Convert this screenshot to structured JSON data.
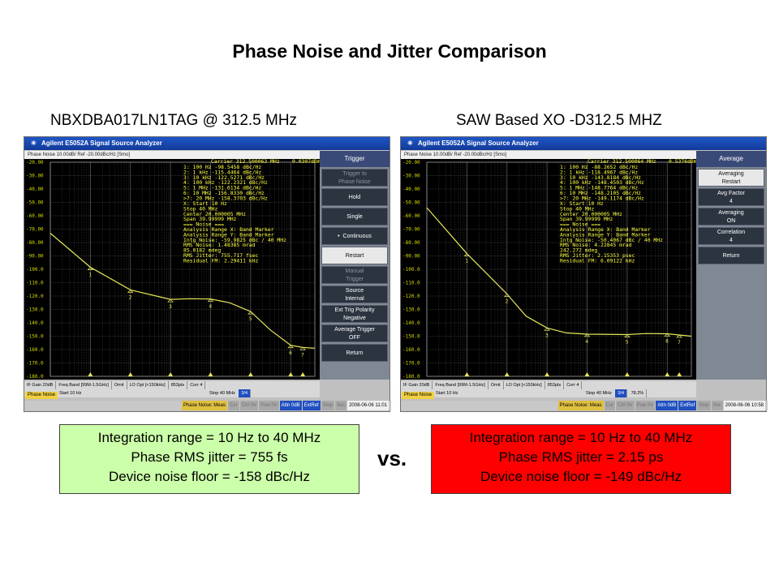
{
  "slide": {
    "title": "Phase Noise and Jitter Comparison",
    "vs": "vs."
  },
  "left": {
    "label": "NBXDBA017LN1TAG @ 312.5 MHz",
    "window_title": "Agilent E5052A Signal Source Analyzer",
    "trace_header": "Phase Noise 10.00dB/ Ref -20.00dBc/Hz [Smo]",
    "carrier": "Carrier 312.500063 MHz",
    "carrier_level": "0.0307dBm",
    "markers": [
      "1:  100 Hz    -98.5458  dBc/Hz",
      "2:  1 kHz    -115.4464  dBc/Hz",
      "3:  10 kHz   -122.5271  dBc/Hz",
      "4:  100 kHz  -122.2321  dBc/Hz",
      "5:  1 MHz    -131.6134  dBc/Hz",
      "6:  10 MHz   -156.8330  dBc/Hz",
      ">7:  20 MHz   -158.3703  dBc/Hz"
    ],
    "analysis": [
      "X: Start 10 Hz",
      "Stop 40 MHz",
      "Center 20.000005 MHz",
      "Span 39.99999 MHz",
      "=== Noise ===",
      "Analysis Range X: Band Marker",
      "Analysis Range Y: Band Marker",
      "Intg Noise: -59.9825 dBc / 40 MHz",
      "RMS Noise: 1.48385 mrad",
      "85.0182 mdeg",
      "RMS Jitter: 755.717 fsec",
      "Residual FM: 2.29411 kHz"
    ],
    "y_ticks": [
      "-20.00",
      "-30.00",
      "-40.00",
      "-50.00",
      "-60.00",
      "-70.00",
      "-80.00",
      "-90.00",
      "-100.0",
      "-110.0",
      "-120.0",
      "-130.0",
      "-140.0",
      "-150.0",
      "-160.0",
      "-170.0",
      "-180.0"
    ],
    "marker_labels": [
      "1",
      "2",
      "3",
      "4",
      "5",
      "6",
      "7"
    ],
    "softkey_title": "Trigger",
    "softkeys": [
      {
        "label": "Trigger to",
        "value": "Phase Noise",
        "style": "dim"
      },
      {
        "label": "Hold",
        "style": "normal"
      },
      {
        "label": "Single",
        "style": "normal"
      },
      {
        "label": "Continuous",
        "style": "dot"
      },
      {
        "label": "Restart",
        "style": "light"
      },
      {
        "label": "Manual",
        "value": "Trigger",
        "style": "dim"
      },
      {
        "label": "Source",
        "value": "Internal",
        "style": "two"
      },
      {
        "label": "Ext Trig Polarity",
        "value": "Negative",
        "style": "two"
      },
      {
        "label": "Average Trigger",
        "value": "OFF",
        "style": "two"
      },
      {
        "label": "Return",
        "style": "normal"
      }
    ],
    "status1": [
      "IF Gain 20dB",
      "Freq Band [99M-1.5GHz]",
      "Omit",
      "LO Opt [<150kHz]",
      "853pts",
      "Corr 4"
    ],
    "status2_start": "Start 10 Hz",
    "status2_stop": "Stop 40 MHz",
    "status2_count": "3/4",
    "phase_noise_tab": "Phase Noise",
    "bottom": [
      "Phase Noise: Meas",
      "Cor",
      "Ctrl 0V",
      "Pow 0V",
      "Attn 0dB",
      "ExtRef",
      "Stop",
      "Svc",
      "2008-06-06 11:01"
    ],
    "info": [
      "Integration range = 10 Hz to 40 MHz",
      "Phase RMS jitter = 755 fs",
      "Device noise floor = -158 dBc/Hz"
    ],
    "trace_points": [
      [
        10,
        -73
      ],
      [
        100,
        -98.5
      ],
      [
        1000,
        -115.4
      ],
      [
        10000,
        -122.5
      ],
      [
        30000,
        -122.0
      ],
      [
        100000,
        -122.2
      ],
      [
        300000,
        -125
      ],
      [
        1000000,
        -131.6
      ],
      [
        3000000,
        -145
      ],
      [
        10000000,
        -156.8
      ],
      [
        20000000,
        -158.4
      ],
      [
        40000000,
        -159
      ]
    ]
  },
  "right": {
    "label": "SAW Based XO -D312.5 MHZ",
    "window_title": "Agilent E5052A Signal Source Analyzer",
    "trace_header": "Phase Noise 10.00dB/ Ref -20.00dBc/Hz [Smo]",
    "carrier": "Carrier 312.500064 MHz",
    "carrier_level": "0.5376dBm",
    "markers": [
      "1:  100 Hz    -88.2652  dBc/Hz",
      "2:  1 kHz    -118.4967  dBc/Hz",
      "3:  10 kHz   -143.8184  dBc/Hz",
      "4:  100 kHz  -148.4503  dBc/Hz",
      "5:  1 MHz    -148.7764  dBc/Hz",
      "6:  10 MHz   -148.2105  dBc/Hz",
      ">7:  20 MHz   -149.1174  dBc/Hz"
    ],
    "analysis": [
      "X: Start 10 Hz",
      "Stop 40 MHz",
      "Center 20.000005 MHz",
      "Span 39.99999 MHz",
      "=== Noise ===",
      "Analysis Range X: Band Marker",
      "Analysis Range Y: Band Marker",
      "Intg Noise: -50.4067 dBc / 40 MHz",
      "RMS Noise: 4.22845 mrad",
      "242.272 mdeg",
      "RMS Jitter: 2.15353 psec",
      "Residual FM: 6.09122 kHz"
    ],
    "y_ticks": [
      "-20.00",
      "-30.00",
      "-40.00",
      "-50.00",
      "-60.00",
      "-70.00",
      "-80.00",
      "-90.00",
      "-100.0",
      "-110.0",
      "-120.0",
      "-130.0",
      "-140.0",
      "-150.0",
      "-160.0",
      "-170.0",
      "-180.0"
    ],
    "marker_labels": [
      "1",
      "2",
      "3",
      "4",
      "5",
      "6",
      "7"
    ],
    "softkey_title": "Average",
    "softkeys": [
      {
        "label": "Averaging",
        "value": "Restart",
        "style": "light2"
      },
      {
        "label": "Avg Factor",
        "value": "4",
        "style": "two"
      },
      {
        "label": "Averaging",
        "value": "ON",
        "style": "two"
      },
      {
        "label": "Correlation",
        "value": "4",
        "style": "two"
      },
      {
        "label": "Return",
        "style": "normal"
      }
    ],
    "status1": [
      "IF Gain 20dB",
      "Freq Band [99M-1.5GHz]",
      "Omit",
      "LO Opt [<150kHz]",
      "853pts",
      "Corr 4"
    ],
    "status2_start": "Start 10 Hz",
    "status2_stop": "Stop 40 MHz",
    "status2_count": "3/4",
    "status2_pct": "78.2%",
    "phase_noise_tab": "Phase Noise",
    "bottom": [
      "Phase Noise: Meas",
      "Cor",
      "Ctrl 0V",
      "Pow 0V",
      "Attn 0dB",
      "ExtRef",
      "Stop",
      "Svc",
      "2008-06-06 10:58"
    ],
    "info": [
      "Integration range = 10 Hz to 40 MHz",
      "Phase RMS jitter = 2.15 ps",
      "Device noise floor = -149 dBc/Hz"
    ],
    "trace_points": [
      [
        10,
        -54
      ],
      [
        100,
        -88.3
      ],
      [
        1000,
        -118.5
      ],
      [
        3000,
        -135
      ],
      [
        10000,
        -143.8
      ],
      [
        30000,
        -147.5
      ],
      [
        100000,
        -148.5
      ],
      [
        1000000,
        -148.8
      ],
      [
        3000000,
        -148
      ],
      [
        10000000,
        -148.2
      ],
      [
        20000000,
        -149.1
      ],
      [
        40000000,
        -150
      ]
    ]
  },
  "colors": {
    "trace": "#e8e858",
    "grid": "#5a5a5a",
    "info_green": "#ccffaa",
    "info_red": "#ff0000"
  }
}
